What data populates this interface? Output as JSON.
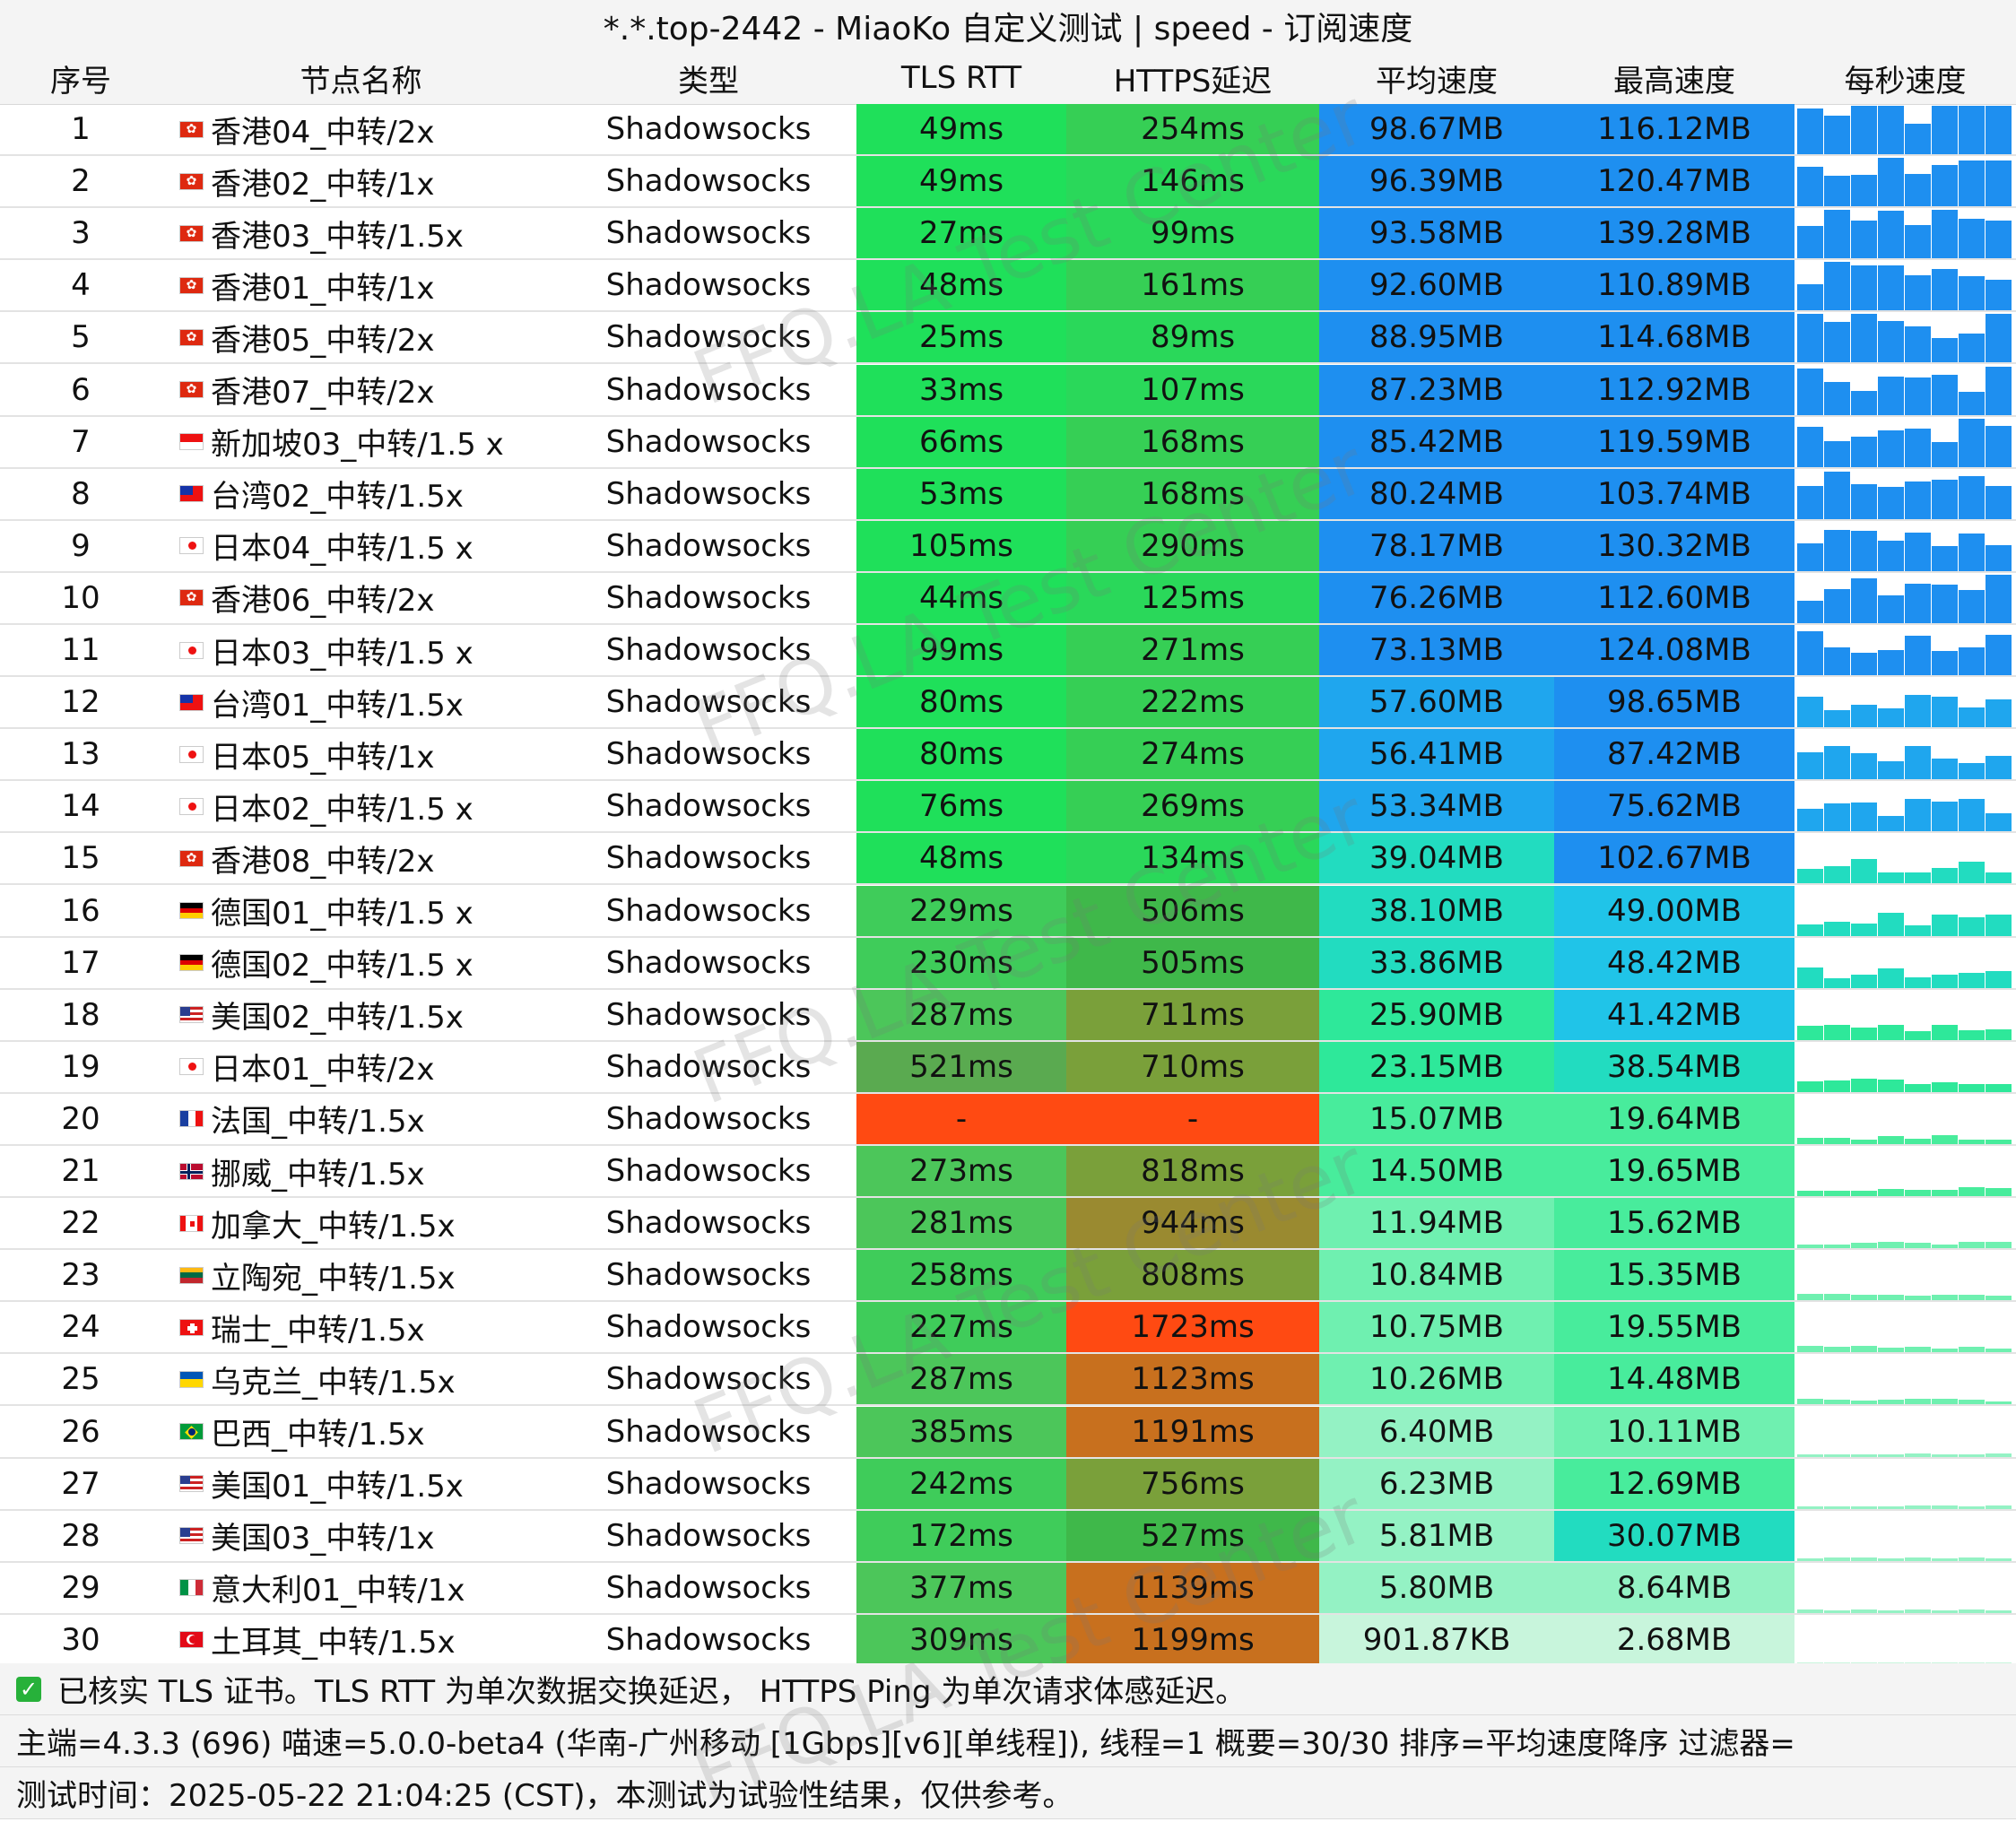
{
  "title": "*.*.top-2442 - MiaoKo 自定义测试 | speed - 订阅速度",
  "columns": [
    "序号",
    "节点名称",
    "类型",
    "TLS RTT",
    "HTTPS延迟",
    "平均速度",
    "最高速度",
    "每秒速度"
  ],
  "watermark": "FFQ.LA Test Center",
  "rows": [
    {
      "idx": "1",
      "flag": "hk",
      "name": "香港04_中转/2x",
      "type": "Shadowsocks",
      "tls": "49ms",
      "https": "254ms",
      "avg": "98.67MB",
      "max": "116.12MB"
    },
    {
      "idx": "2",
      "flag": "hk",
      "name": "香港02_中转/1x",
      "type": "Shadowsocks",
      "tls": "49ms",
      "https": "146ms",
      "avg": "96.39MB",
      "max": "120.47MB"
    },
    {
      "idx": "3",
      "flag": "hk",
      "name": "香港03_中转/1.5x",
      "type": "Shadowsocks",
      "tls": "27ms",
      "https": "99ms",
      "avg": "93.58MB",
      "max": "139.28MB"
    },
    {
      "idx": "4",
      "flag": "hk",
      "name": "香港01_中转/1x",
      "type": "Shadowsocks",
      "tls": "48ms",
      "https": "161ms",
      "avg": "92.60MB",
      "max": "110.89MB"
    },
    {
      "idx": "5",
      "flag": "hk",
      "name": "香港05_中转/2x",
      "type": "Shadowsocks",
      "tls": "25ms",
      "https": "89ms",
      "avg": "88.95MB",
      "max": "114.68MB"
    },
    {
      "idx": "6",
      "flag": "hk",
      "name": "香港07_中转/2x",
      "type": "Shadowsocks",
      "tls": "33ms",
      "https": "107ms",
      "avg": "87.23MB",
      "max": "112.92MB"
    },
    {
      "idx": "7",
      "flag": "sg",
      "name": "新加坡03_中转/1.5 x",
      "type": "Shadowsocks",
      "tls": "66ms",
      "https": "168ms",
      "avg": "85.42MB",
      "max": "119.59MB"
    },
    {
      "idx": "8",
      "flag": "tw",
      "name": "台湾02_中转/1.5x",
      "type": "Shadowsocks",
      "tls": "53ms",
      "https": "168ms",
      "avg": "80.24MB",
      "max": "103.74MB"
    },
    {
      "idx": "9",
      "flag": "jp",
      "name": "日本04_中转/1.5 x",
      "type": "Shadowsocks",
      "tls": "105ms",
      "https": "290ms",
      "avg": "78.17MB",
      "max": "130.32MB"
    },
    {
      "idx": "10",
      "flag": "hk",
      "name": "香港06_中转/2x",
      "type": "Shadowsocks",
      "tls": "44ms",
      "https": "125ms",
      "avg": "76.26MB",
      "max": "112.60MB"
    },
    {
      "idx": "11",
      "flag": "jp",
      "name": "日本03_中转/1.5 x",
      "type": "Shadowsocks",
      "tls": "99ms",
      "https": "271ms",
      "avg": "73.13MB",
      "max": "124.08MB"
    },
    {
      "idx": "12",
      "flag": "tw",
      "name": "台湾01_中转/1.5x",
      "type": "Shadowsocks",
      "tls": "80ms",
      "https": "222ms",
      "avg": "57.60MB",
      "max": "98.65MB"
    },
    {
      "idx": "13",
      "flag": "jp",
      "name": "日本05_中转/1x",
      "type": "Shadowsocks",
      "tls": "80ms",
      "https": "274ms",
      "avg": "56.41MB",
      "max": "87.42MB"
    },
    {
      "idx": "14",
      "flag": "jp",
      "name": "日本02_中转/1.5 x",
      "type": "Shadowsocks",
      "tls": "76ms",
      "https": "269ms",
      "avg": "53.34MB",
      "max": "75.62MB"
    },
    {
      "idx": "15",
      "flag": "hk",
      "name": "香港08_中转/2x",
      "type": "Shadowsocks",
      "tls": "48ms",
      "https": "134ms",
      "avg": "39.04MB",
      "max": "102.67MB"
    },
    {
      "idx": "16",
      "flag": "de",
      "name": "德国01_中转/1.5 x",
      "type": "Shadowsocks",
      "tls": "229ms",
      "https": "506ms",
      "avg": "38.10MB",
      "max": "49.00MB"
    },
    {
      "idx": "17",
      "flag": "de",
      "name": "德国02_中转/1.5 x",
      "type": "Shadowsocks",
      "tls": "230ms",
      "https": "505ms",
      "avg": "33.86MB",
      "max": "48.42MB"
    },
    {
      "idx": "18",
      "flag": "us",
      "name": "美国02_中转/1.5x",
      "type": "Shadowsocks",
      "tls": "287ms",
      "https": "711ms",
      "avg": "25.90MB",
      "max": "41.42MB"
    },
    {
      "idx": "19",
      "flag": "jp",
      "name": "日本01_中转/2x",
      "type": "Shadowsocks",
      "tls": "521ms",
      "https": "710ms",
      "avg": "23.15MB",
      "max": "38.54MB"
    },
    {
      "idx": "20",
      "flag": "fr",
      "name": "法国_中转/1.5x",
      "type": "Shadowsocks",
      "tls": "-",
      "https": "-",
      "avg": "15.07MB",
      "max": "19.64MB"
    },
    {
      "idx": "21",
      "flag": "no",
      "name": "挪威_中转/1.5x",
      "type": "Shadowsocks",
      "tls": "273ms",
      "https": "818ms",
      "avg": "14.50MB",
      "max": "19.65MB"
    },
    {
      "idx": "22",
      "flag": "ca",
      "name": "加拿大_中转/1.5x",
      "type": "Shadowsocks",
      "tls": "281ms",
      "https": "944ms",
      "avg": "11.94MB",
      "max": "15.62MB"
    },
    {
      "idx": "23",
      "flag": "lt",
      "name": "立陶宛_中转/1.5x",
      "type": "Shadowsocks",
      "tls": "258ms",
      "https": "808ms",
      "avg": "10.84MB",
      "max": "15.35MB"
    },
    {
      "idx": "24",
      "flag": "ch",
      "name": "瑞士_中转/1.5x",
      "type": "Shadowsocks",
      "tls": "227ms",
      "https": "1723ms",
      "avg": "10.75MB",
      "max": "19.55MB"
    },
    {
      "idx": "25",
      "flag": "ua",
      "name": "乌克兰_中转/1.5x",
      "type": "Shadowsocks",
      "tls": "287ms",
      "https": "1123ms",
      "avg": "10.26MB",
      "max": "14.48MB"
    },
    {
      "idx": "26",
      "flag": "br",
      "name": "巴西_中转/1.5x",
      "type": "Shadowsocks",
      "tls": "385ms",
      "https": "1191ms",
      "avg": "6.40MB",
      "max": "10.11MB"
    },
    {
      "idx": "27",
      "flag": "us",
      "name": "美国01_中转/1.5x",
      "type": "Shadowsocks",
      "tls": "242ms",
      "https": "756ms",
      "avg": "6.23MB",
      "max": "12.69MB"
    },
    {
      "idx": "28",
      "flag": "us",
      "name": "美国03_中转/1x",
      "type": "Shadowsocks",
      "tls": "172ms",
      "https": "527ms",
      "avg": "5.81MB",
      "max": "30.07MB"
    },
    {
      "idx": "29",
      "flag": "it",
      "name": "意大利01_中转/1x",
      "type": "Shadowsocks",
      "tls": "377ms",
      "https": "1139ms",
      "avg": "5.80MB",
      "max": "8.64MB"
    },
    {
      "idx": "30",
      "flag": "tr",
      "name": "土耳其_中转/1.5x",
      "type": "Shadowsocks",
      "tls": "309ms",
      "https": "1199ms",
      "avg": "901.87KB",
      "max": "2.68MB"
    }
  ],
  "footer": {
    "line1": "已核实 TLS 证书。TLS RTT 为单次数据交换延迟， HTTPS Ping 为单次请求体感延迟。",
    "line2": "主端=4.3.3 (696) 喵速=5.0.0-beta4 (华南-广州移动 [1Gbps][v6][单线程]), 线程=1 概要=30/30 排序=平均速度降序 过滤器=",
    "line3": "测试时间：2025-05-22 21:04:25 (CST)，本测试为试验性结果，仅供参考。"
  },
  "colors": {
    "header_bg": "#f4f4f4",
    "tls_good": "#1fe05a",
    "tls_fail": "#ff4a12",
    "speed_fast": "#1e8ff0",
    "speed_slow": "#c8f5dc"
  }
}
